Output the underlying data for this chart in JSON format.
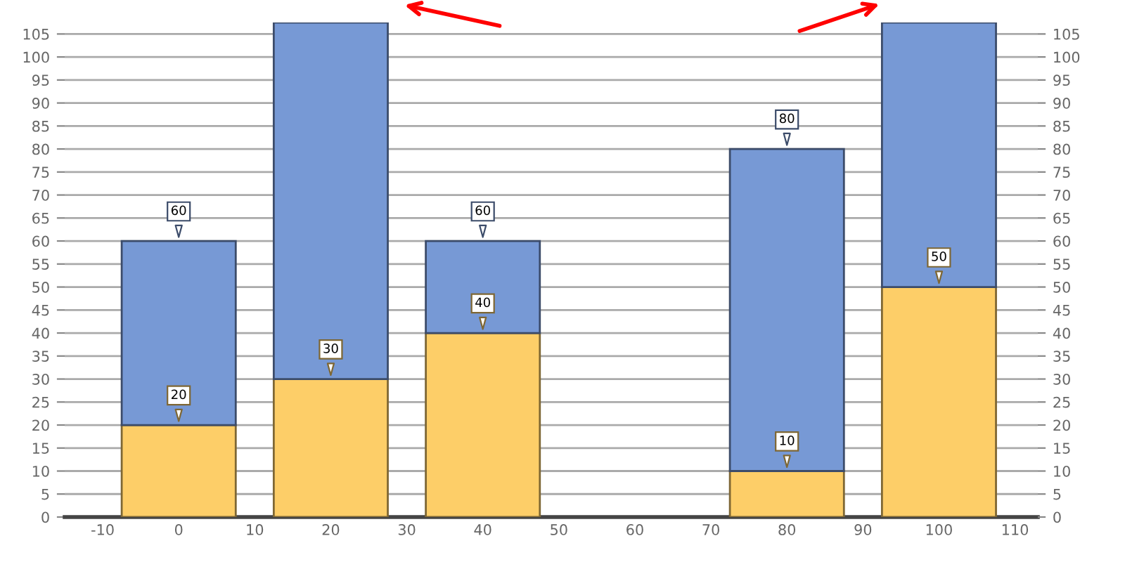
{
  "chart_data": {
    "type": "bar",
    "x": [
      0,
      20,
      40,
      80,
      100
    ],
    "stacked": true,
    "series": [
      {
        "color": "#fdce68",
        "values": [
          20,
          30,
          40,
          10,
          50
        ],
        "value_labels": [
          "20",
          "30",
          "40",
          "10",
          "50"
        ]
      },
      {
        "color": "#7799d5",
        "values": [
          40,
          77.5,
          20,
          70,
          57.5
        ]
      }
    ],
    "totals": [
      "60",
      null,
      "60",
      "80",
      null
    ],
    "xlim": [
      -15,
      113
    ],
    "xticks": [
      -10,
      0,
      10,
      20,
      30,
      40,
      50,
      60,
      70,
      80,
      90,
      100,
      110
    ],
    "ylim": [
      0,
      107.5
    ],
    "yticks": [
      0,
      5,
      10,
      15,
      20,
      25,
      30,
      35,
      40,
      45,
      50,
      55,
      60,
      65,
      70,
      75,
      80,
      85,
      90,
      95,
      100,
      105
    ],
    "y2lim": [
      0,
      107.5
    ],
    "y2ticks": [
      0,
      5,
      10,
      15,
      20,
      25,
      30,
      35,
      40,
      45,
      50,
      55,
      60,
      65,
      70,
      75,
      80,
      85,
      90,
      95,
      100,
      105
    ],
    "grid": "y"
  }
}
